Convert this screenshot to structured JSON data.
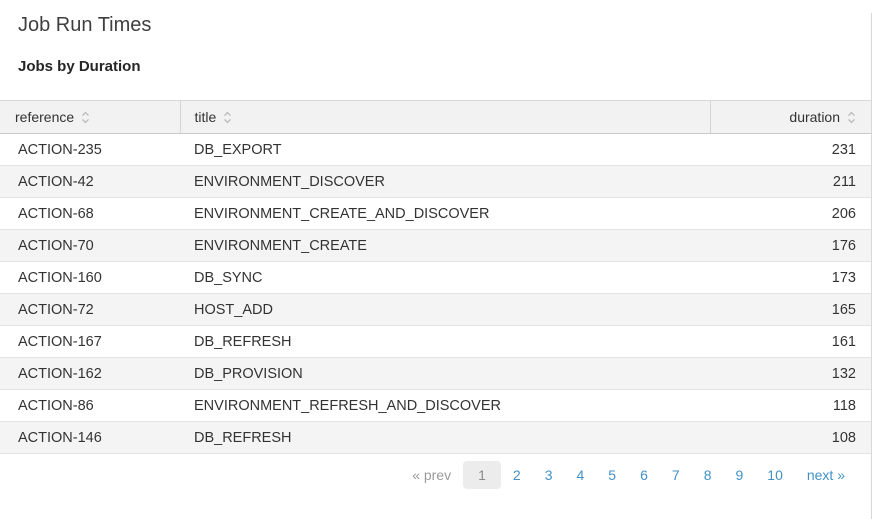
{
  "page": {
    "title": "Job Run Times",
    "subtitle": "Jobs by Duration"
  },
  "table": {
    "columns": [
      {
        "key": "reference",
        "label": "reference",
        "align": "left",
        "sortable": true
      },
      {
        "key": "title",
        "label": "title",
        "align": "left",
        "sortable": true
      },
      {
        "key": "duration",
        "label": "duration",
        "align": "right",
        "sortable": true
      }
    ],
    "rows": [
      {
        "reference": "ACTION-235",
        "title": "DB_EXPORT",
        "duration": "231"
      },
      {
        "reference": "ACTION-42",
        "title": "ENVIRONMENT_DISCOVER",
        "duration": "211"
      },
      {
        "reference": "ACTION-68",
        "title": "ENVIRONMENT_CREATE_AND_DISCOVER",
        "duration": "206"
      },
      {
        "reference": "ACTION-70",
        "title": "ENVIRONMENT_CREATE",
        "duration": "176"
      },
      {
        "reference": "ACTION-160",
        "title": "DB_SYNC",
        "duration": "173"
      },
      {
        "reference": "ACTION-72",
        "title": "HOST_ADD",
        "duration": "165"
      },
      {
        "reference": "ACTION-167",
        "title": "DB_REFRESH",
        "duration": "161"
      },
      {
        "reference": "ACTION-162",
        "title": "DB_PROVISION",
        "duration": "132"
      },
      {
        "reference": "ACTION-86",
        "title": "ENVIRONMENT_REFRESH_AND_DISCOVER",
        "duration": "118"
      },
      {
        "reference": "ACTION-146",
        "title": "DB_REFRESH",
        "duration": "108"
      }
    ]
  },
  "pagination": {
    "prev_label": "« prev",
    "next_label": "next »",
    "current_page": "1",
    "pages": [
      "1",
      "2",
      "3",
      "4",
      "5",
      "6",
      "7",
      "8",
      "9",
      "10"
    ]
  },
  "icons": {
    "sort": "sort-icon"
  },
  "colors": {
    "link_blue": "#4292c6",
    "header_bg": "#f2f2f2",
    "stripe_bg": "#f4f4f4",
    "border": "#d8d8d8",
    "row_border": "#e3e3e3",
    "muted_gray": "#9b9b9b",
    "current_page_bg": "#ececec",
    "text": "#333333"
  }
}
